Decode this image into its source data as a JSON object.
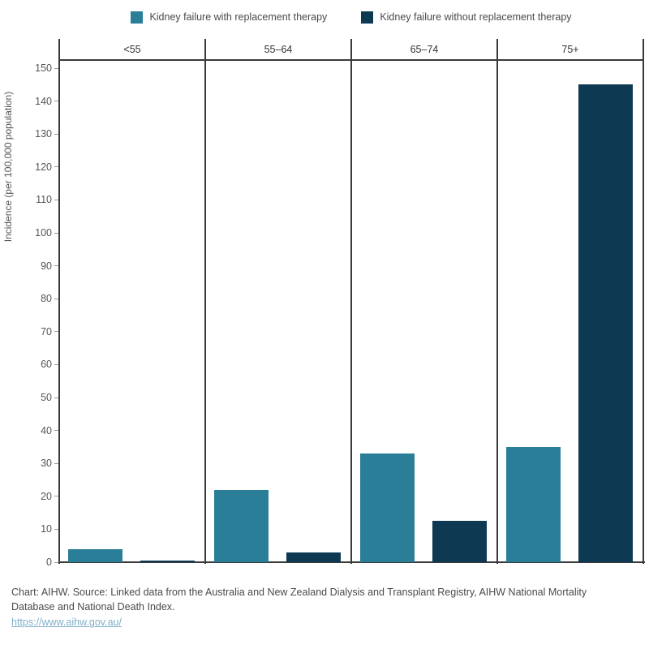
{
  "chart_data": {
    "type": "bar",
    "panels": [
      "<55",
      "55–64",
      "65–74",
      "75+"
    ],
    "series": [
      {
        "name": "Kidney failure with replacement therapy",
        "color": "#2b7e98",
        "values": [
          4,
          22,
          33,
          35
        ]
      },
      {
        "name": "Kidney failure without replacement therapy",
        "color": "#0d3a52",
        "values": [
          0.5,
          3,
          12.5,
          145
        ]
      }
    ],
    "ylabel": "Incidence (per 100,000 population)",
    "ylim": [
      0,
      152.5
    ],
    "yticks": [
      0,
      10,
      20,
      30,
      40,
      50,
      60,
      70,
      80,
      90,
      100,
      110,
      120,
      130,
      140,
      150
    ],
    "grid": false,
    "legend_position": "top"
  },
  "legend": {
    "items": [
      {
        "label": "Kidney failure with replacement therapy"
      },
      {
        "label": "Kidney failure without replacement therapy"
      }
    ]
  },
  "footer": {
    "source_text": "Chart: AIHW. Source: Linked data from the Australia and New Zealand Dialysis and Transplant Registry, AIHW National Mortality Database and National Death Index.",
    "link": "https://www.aihw.gov.au/"
  }
}
